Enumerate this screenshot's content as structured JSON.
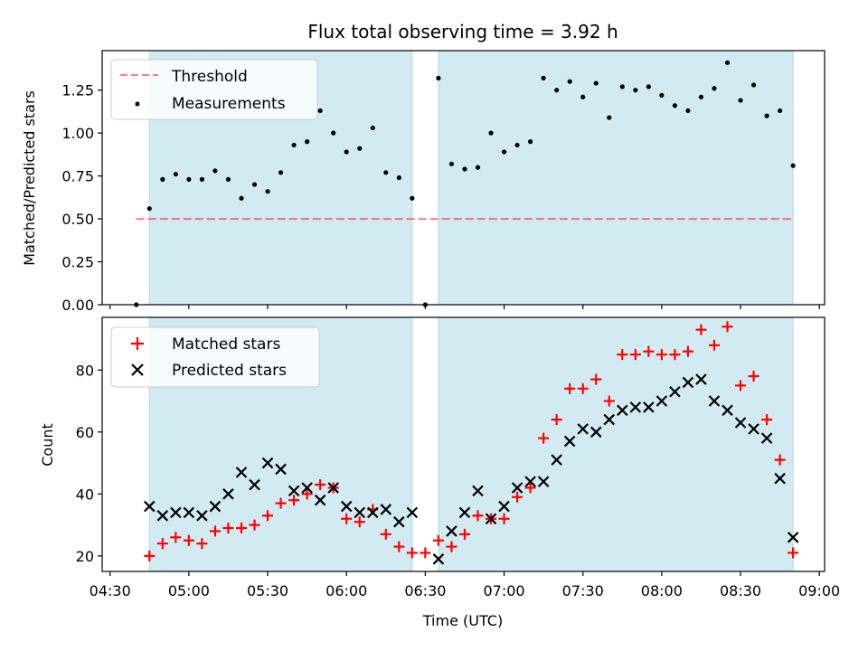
{
  "figure_title": "Flux total observing time = 3.92 h",
  "colors": {
    "shade": "#add8e6",
    "threshold": "#ff0000",
    "matched": "#ff0000",
    "predicted": "#000000",
    "measurement": "#000000"
  },
  "chart_data": [
    {
      "type": "scatter",
      "panel": "top",
      "title": "Flux total observing time = 3.92 h",
      "xlabel": "",
      "ylabel": "Matched/Predicted stars",
      "xlim": [
        "04:27",
        "09:02"
      ],
      "ylim": [
        0,
        1.48
      ],
      "yticks": [
        "0.00",
        "0.25",
        "0.50",
        "0.75",
        "1.00",
        "1.25"
      ],
      "legend": {
        "placement": "top-left",
        "entries": [
          "Threshold",
          "Measurements"
        ]
      },
      "shaded_intervals": [
        [
          "04:45",
          "06:25"
        ],
        [
          "06:35",
          "08:50"
        ]
      ],
      "threshold": {
        "name": "Threshold",
        "style": "dashed",
        "y": 0.5,
        "x": [
          "04:40",
          "08:50"
        ]
      },
      "series": [
        {
          "name": "Measurements",
          "marker": "dot",
          "x": [
            "04:40",
            "04:45",
            "04:50",
            "04:55",
            "05:00",
            "05:05",
            "05:10",
            "05:15",
            "05:20",
            "05:25",
            "05:30",
            "05:35",
            "05:40",
            "05:45",
            "05:50",
            "05:55",
            "06:00",
            "06:05",
            "06:10",
            "06:15",
            "06:20",
            "06:25",
            "06:30",
            "06:35",
            "06:40",
            "06:45",
            "06:50",
            "06:55",
            "07:00",
            "07:05",
            "07:10",
            "07:15",
            "07:20",
            "07:25",
            "07:30",
            "07:35",
            "07:40",
            "07:45",
            "07:50",
            "07:55",
            "08:00",
            "08:05",
            "08:10",
            "08:15",
            "08:20",
            "08:25",
            "08:30",
            "08:35",
            "08:40",
            "08:45",
            "08:50"
          ],
          "y": [
            0.0,
            0.56,
            0.73,
            0.76,
            0.73,
            0.73,
            0.78,
            0.73,
            0.62,
            0.7,
            0.66,
            0.77,
            0.93,
            0.95,
            1.13,
            1.0,
            0.89,
            0.91,
            1.03,
            0.77,
            0.74,
            0.62,
            0.0,
            1.32,
            0.82,
            0.79,
            0.8,
            1.0,
            0.89,
            0.93,
            0.95,
            1.32,
            1.25,
            1.3,
            1.21,
            1.29,
            1.09,
            1.27,
            1.25,
            1.27,
            1.22,
            1.16,
            1.13,
            1.21,
            1.26,
            1.41,
            1.19,
            1.28,
            1.1,
            1.13,
            0.81
          ]
        }
      ]
    },
    {
      "type": "scatter",
      "panel": "bottom",
      "xlabel": "Time (UTC)",
      "ylabel": "Count",
      "xlim": [
        "04:27",
        "09:02"
      ],
      "ylim": [
        15,
        97
      ],
      "xticks": [
        "04:30",
        "05:00",
        "05:30",
        "06:00",
        "06:30",
        "07:00",
        "07:30",
        "08:00",
        "08:30",
        "09:00"
      ],
      "yticks": [
        "20",
        "40",
        "60",
        "80"
      ],
      "legend": {
        "placement": "top-left",
        "entries": [
          "Matched stars",
          "Predicted stars"
        ]
      },
      "shaded_intervals": [
        [
          "04:45",
          "06:25"
        ],
        [
          "06:35",
          "08:50"
        ]
      ],
      "series": [
        {
          "name": "Matched stars",
          "marker": "plus",
          "x": [
            "04:45",
            "04:50",
            "04:55",
            "05:00",
            "05:05",
            "05:10",
            "05:15",
            "05:20",
            "05:25",
            "05:30",
            "05:35",
            "05:40",
            "05:45",
            "05:50",
            "05:55",
            "06:00",
            "06:05",
            "06:10",
            "06:15",
            "06:20",
            "06:25",
            "06:30",
            "06:35",
            "06:40",
            "06:45",
            "06:50",
            "06:55",
            "07:00",
            "07:05",
            "07:10",
            "07:15",
            "07:20",
            "07:25",
            "07:30",
            "07:35",
            "07:40",
            "07:45",
            "07:50",
            "07:55",
            "08:00",
            "08:05",
            "08:10",
            "08:15",
            "08:20",
            "08:25",
            "08:30",
            "08:35",
            "08:40",
            "08:45",
            "08:50"
          ],
          "y": [
            20,
            24,
            26,
            25,
            24,
            28,
            29,
            29,
            30,
            33,
            37,
            38,
            40,
            43,
            42,
            32,
            31,
            35,
            27,
            23,
            21,
            21,
            25,
            23,
            27,
            33,
            32,
            32,
            39,
            42,
            58,
            64,
            74,
            74,
            77,
            70,
            85,
            85,
            86,
            85,
            85,
            86,
            93,
            88,
            94,
            75,
            78,
            64,
            51,
            21
          ]
        },
        {
          "name": "Predicted stars",
          "marker": "x",
          "x": [
            "04:45",
            "04:50",
            "04:55",
            "05:00",
            "05:05",
            "05:10",
            "05:15",
            "05:20",
            "05:25",
            "05:30",
            "05:35",
            "05:40",
            "05:45",
            "05:50",
            "05:55",
            "06:00",
            "06:05",
            "06:10",
            "06:15",
            "06:20",
            "06:25",
            "06:35",
            "06:40",
            "06:45",
            "06:50",
            "06:55",
            "07:00",
            "07:05",
            "07:10",
            "07:15",
            "07:20",
            "07:25",
            "07:30",
            "07:35",
            "07:40",
            "07:45",
            "07:50",
            "07:55",
            "08:00",
            "08:05",
            "08:10",
            "08:15",
            "08:20",
            "08:25",
            "08:30",
            "08:35",
            "08:40",
            "08:45",
            "08:50"
          ],
          "y": [
            36,
            33,
            34,
            34,
            33,
            36,
            40,
            47,
            43,
            50,
            48,
            41,
            42,
            38,
            42,
            36,
            34,
            34,
            35,
            31,
            34,
            19,
            28,
            34,
            41,
            32,
            36,
            42,
            44,
            44,
            51,
            57,
            61,
            60,
            64,
            67,
            68,
            68,
            70,
            73,
            76,
            77,
            70,
            67,
            63,
            61,
            58,
            45,
            26
          ]
        }
      ]
    }
  ]
}
